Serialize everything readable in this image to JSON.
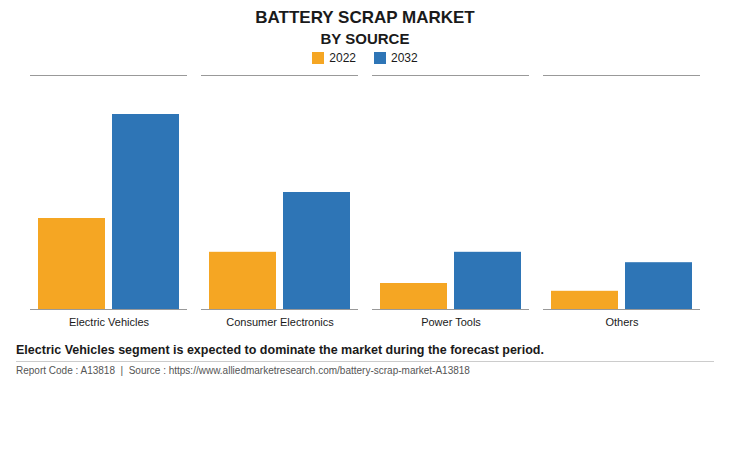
{
  "chart_data": {
    "type": "bar",
    "title": "BATTERY SCRAP MARKET",
    "subtitle": "BY SOURCE",
    "categories": [
      "Electric Vehicles",
      "Consumer Electronics",
      "Power Tools",
      "Others"
    ],
    "series": [
      {
        "name": "2022",
        "color": "#F5A623",
        "values": [
          35,
          22,
          10,
          7
        ]
      },
      {
        "name": "2032",
        "color": "#2E75B6",
        "values": [
          75,
          45,
          22,
          18
        ]
      }
    ],
    "ylim": [
      0,
      90
    ],
    "grid": false,
    "legend": "top",
    "tick_labels": "x",
    "annotations": [
      "Electric Vehicles segment is expected to dominate the market during the forecast period.",
      "Report Code : A13818  |  Source : https://www.alliedmarketresearch.com/battery-scrap-market-A13818"
    ]
  }
}
